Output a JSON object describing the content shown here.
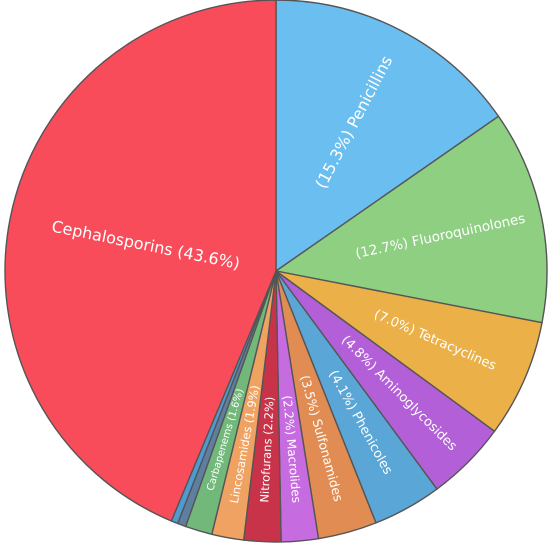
{
  "chart_data": {
    "type": "pie",
    "slices": [
      {
        "label": "(15.3%) Penicillins",
        "value": 15.3,
        "color": "#6bbff0"
      },
      {
        "label": "(12.7%) Fluoroquinolones",
        "value": 12.7,
        "color": "#8ecf82"
      },
      {
        "label": "(7.0%) Tetracyclines",
        "value": 7.0,
        "color": "#ebb148"
      },
      {
        "label": "(4.8%) Aminoglycosides",
        "value": 4.8,
        "color": "#b35fd8"
      },
      {
        "label": "(4.1%) Phenicoles",
        "value": 4.1,
        "color": "#5aa6d6"
      },
      {
        "label": "(3.5%) Sulfonamides",
        "value": 3.5,
        "color": "#e08c52"
      },
      {
        "label": "(2.2%) Macrolides",
        "value": 2.2,
        "color": "#c76be0"
      },
      {
        "label": "Nitrofurans (2.2%)",
        "value": 2.2,
        "color": "#c8334a"
      },
      {
        "label": "Lincosamides (1.9%)",
        "value": 1.9,
        "color": "#f0a262"
      },
      {
        "label": "Carbapenems (1.6%)",
        "value": 1.6,
        "color": "#71b87a"
      },
      {
        "label": "",
        "value": 0.5,
        "color": "#5f7fa0"
      },
      {
        "label": "",
        "value": 0.4,
        "color": "#4f9ad0"
      },
      {
        "label": "Cephalosporins (43.6%)",
        "value": 43.6,
        "color": "#f84c5a"
      }
    ]
  }
}
